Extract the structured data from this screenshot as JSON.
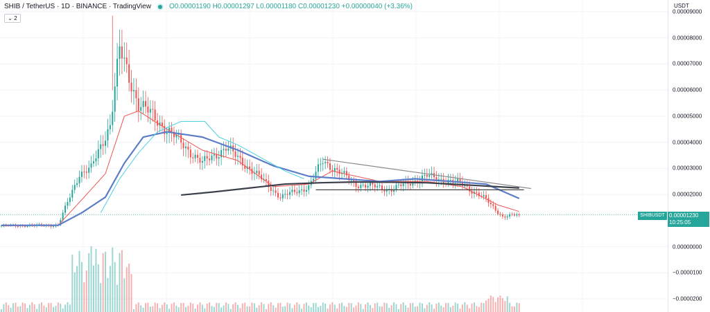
{
  "legend": {
    "symbol": "SHIB / TetherUS · 1D · BINANCE · TradingView",
    "ohlc": "O0.00001190 H0.00001297 L0.00001180 C0.00001230 +0.00000040 (+3.36%)",
    "indicator_count": "2"
  },
  "axis": {
    "currency": "USDT",
    "ticks": [
      {
        "value": 9e-05,
        "label": "0.00009000"
      },
      {
        "value": 8e-05,
        "label": "0.00008000"
      },
      {
        "value": 7e-05,
        "label": "0.00007000"
      },
      {
        "value": 6e-05,
        "label": "0.00006000"
      },
      {
        "value": 5e-05,
        "label": "0.00005000"
      },
      {
        "value": 4e-05,
        "label": "0.00004000"
      },
      {
        "value": 3e-05,
        "label": "0.00003000"
      },
      {
        "value": 2e-05,
        "label": "0.00002000"
      },
      {
        "value": 0.0,
        "label": "0.00000000"
      },
      {
        "value": -1e-05,
        "label": "−0.0000100"
      },
      {
        "value": -2e-05,
        "label": "−0.0000200"
      }
    ]
  },
  "price_tag": {
    "symbol": "SHIBUSDT",
    "price": "0.00001230",
    "countdown": "10:25:05"
  },
  "colors": {
    "up": "#26a69a",
    "down": "#ef5350",
    "ma_fast": "#ef5350",
    "ma_mid": "#5b7cc9",
    "ma_long": "#3a3f4b",
    "ma_cyan": "#4dd0e1",
    "trendline": "#888888"
  },
  "chart_data": {
    "type": "candlestick",
    "symbol": "SHIBUSDT",
    "timeframe": "1D",
    "y_range": [
      -2.5e-05,
      9.45e-05
    ],
    "last_close": 1.23e-05,
    "segments": [
      {
        "from_bar": 0,
        "to_bar": 24,
        "from_close": 8.1e-06,
        "to_close": 8.2e-06
      },
      {
        "from_bar": 24,
        "to_bar": 33,
        "from_close": 8.2e-06,
        "to_close": 2.8e-05
      },
      {
        "from_bar": 33,
        "to_bar": 38,
        "from_close": 2.8e-05,
        "to_close": 3e-05
      },
      {
        "from_bar": 38,
        "to_bar": 46,
        "from_close": 3e-05,
        "to_close": 4.7e-05
      },
      {
        "from_bar": 46,
        "to_bar": 50,
        "from_close": 4.7e-05,
        "to_close": 7.5e-05
      },
      {
        "from_bar": 50,
        "to_bar": 58,
        "from_close": 7.5e-05,
        "to_close": 5.5e-05
      },
      {
        "from_bar": 58,
        "to_bar": 70,
        "from_close": 5.5e-05,
        "to_close": 4.5e-05
      },
      {
        "from_bar": 70,
        "to_bar": 85,
        "from_close": 4.5e-05,
        "to_close": 3.2e-05
      },
      {
        "from_bar": 85,
        "to_bar": 95,
        "from_close": 3.2e-05,
        "to_close": 3.8e-05
      },
      {
        "from_bar": 95,
        "to_bar": 110,
        "from_close": 3.8e-05,
        "to_close": 2.6e-05
      },
      {
        "from_bar": 110,
        "to_bar": 118,
        "from_close": 2.6e-05,
        "to_close": 1.9e-05
      },
      {
        "from_bar": 118,
        "to_bar": 130,
        "from_close": 1.9e-05,
        "to_close": 2.3e-05
      },
      {
        "from_bar": 130,
        "to_bar": 136,
        "from_close": 2.3e-05,
        "to_close": 3.3e-05
      },
      {
        "from_bar": 136,
        "to_bar": 150,
        "from_close": 3.3e-05,
        "to_close": 2.4e-05
      },
      {
        "from_bar": 150,
        "to_bar": 165,
        "from_close": 2.4e-05,
        "to_close": 2.2e-05
      },
      {
        "from_bar": 165,
        "to_bar": 180,
        "from_close": 2.2e-05,
        "to_close": 2.7e-05
      },
      {
        "from_bar": 180,
        "to_bar": 195,
        "from_close": 2.7e-05,
        "to_close": 2.4e-05
      },
      {
        "from_bar": 195,
        "to_bar": 205,
        "from_close": 2.4e-05,
        "to_close": 1.8e-05
      },
      {
        "from_bar": 205,
        "to_bar": 212,
        "from_close": 1.8e-05,
        "to_close": 1.15e-05
      },
      {
        "from_bar": 212,
        "to_bar": 219,
        "from_close": 1.15e-05,
        "to_close": 1.23e-05
      }
    ],
    "moving_averages": [
      {
        "name": "",
        "color": "#ef5350",
        "points": [
          [
            0,
            8e-06
          ],
          [
            24,
            8.2e-06
          ],
          [
            34,
            1.8e-05
          ],
          [
            44,
            2.8e-05
          ],
          [
            52,
            5e-05
          ],
          [
            58,
            5.2e-05
          ],
          [
            70,
            4.5e-05
          ],
          [
            85,
            3.7e-05
          ],
          [
            100,
            3.3e-05
          ],
          [
            115,
            2.3e-05
          ],
          [
            130,
            2.4e-05
          ],
          [
            140,
            2.9e-05
          ],
          [
            160,
            2.5e-05
          ],
          [
            180,
            2.5e-05
          ],
          [
            195,
            2.3e-05
          ],
          [
            210,
            1.6e-05
          ],
          [
            219,
            1.35e-05
          ]
        ]
      },
      {
        "name": "",
        "color": "#5b7cc9",
        "points": [
          [
            0,
            8.2e-06
          ],
          [
            24,
            8.2e-06
          ],
          [
            34,
            1.3e-05
          ],
          [
            44,
            1.9e-05
          ],
          [
            52,
            3.2e-05
          ],
          [
            60,
            4.2e-05
          ],
          [
            70,
            4.4e-05
          ],
          [
            85,
            4.2e-05
          ],
          [
            100,
            3.7e-05
          ],
          [
            115,
            3.1e-05
          ],
          [
            130,
            2.7e-05
          ],
          [
            145,
            2.6e-05
          ],
          [
            160,
            2.5e-05
          ],
          [
            175,
            2.6e-05
          ],
          [
            190,
            2.5e-05
          ],
          [
            205,
            2.4e-05
          ],
          [
            219,
            1.85e-05
          ]
        ]
      },
      {
        "name": "",
        "color": "#4dd0e1",
        "points": [
          [
            42,
            1.3e-05
          ],
          [
            50,
            2.6e-05
          ],
          [
            58,
            3.6e-05
          ],
          [
            66,
            4.4e-05
          ],
          [
            76,
            4.8e-05
          ],
          [
            86,
            4.8e-05
          ],
          [
            92,
            4.2e-05
          ],
          [
            100,
            3.9e-05
          ],
          [
            110,
            3.4e-05
          ],
          [
            120,
            2.9e-05
          ],
          [
            128,
            2.6e-05
          ]
        ]
      },
      {
        "name": "",
        "color": "#3a3f4b",
        "points": [
          [
            76,
            1.98e-05
          ],
          [
            90,
            2.1e-05
          ],
          [
            105,
            2.25e-05
          ],
          [
            120,
            2.4e-05
          ],
          [
            135,
            2.45e-05
          ],
          [
            150,
            2.48e-05
          ],
          [
            165,
            2.47e-05
          ],
          [
            180,
            2.45e-05
          ],
          [
            200,
            2.35e-05
          ],
          [
            219,
            2.25e-05
          ]
        ]
      }
    ],
    "trendlines": [
      {
        "type": "descending-triangle",
        "color": "#888888",
        "points": [
          [
            136,
            3.35e-05
          ],
          [
            224,
            2.23e-05
          ]
        ]
      },
      {
        "type": "support",
        "color": "#444444",
        "points": [
          [
            133,
            2.18e-05
          ],
          [
            221,
            2.18e-05
          ]
        ]
      }
    ]
  }
}
